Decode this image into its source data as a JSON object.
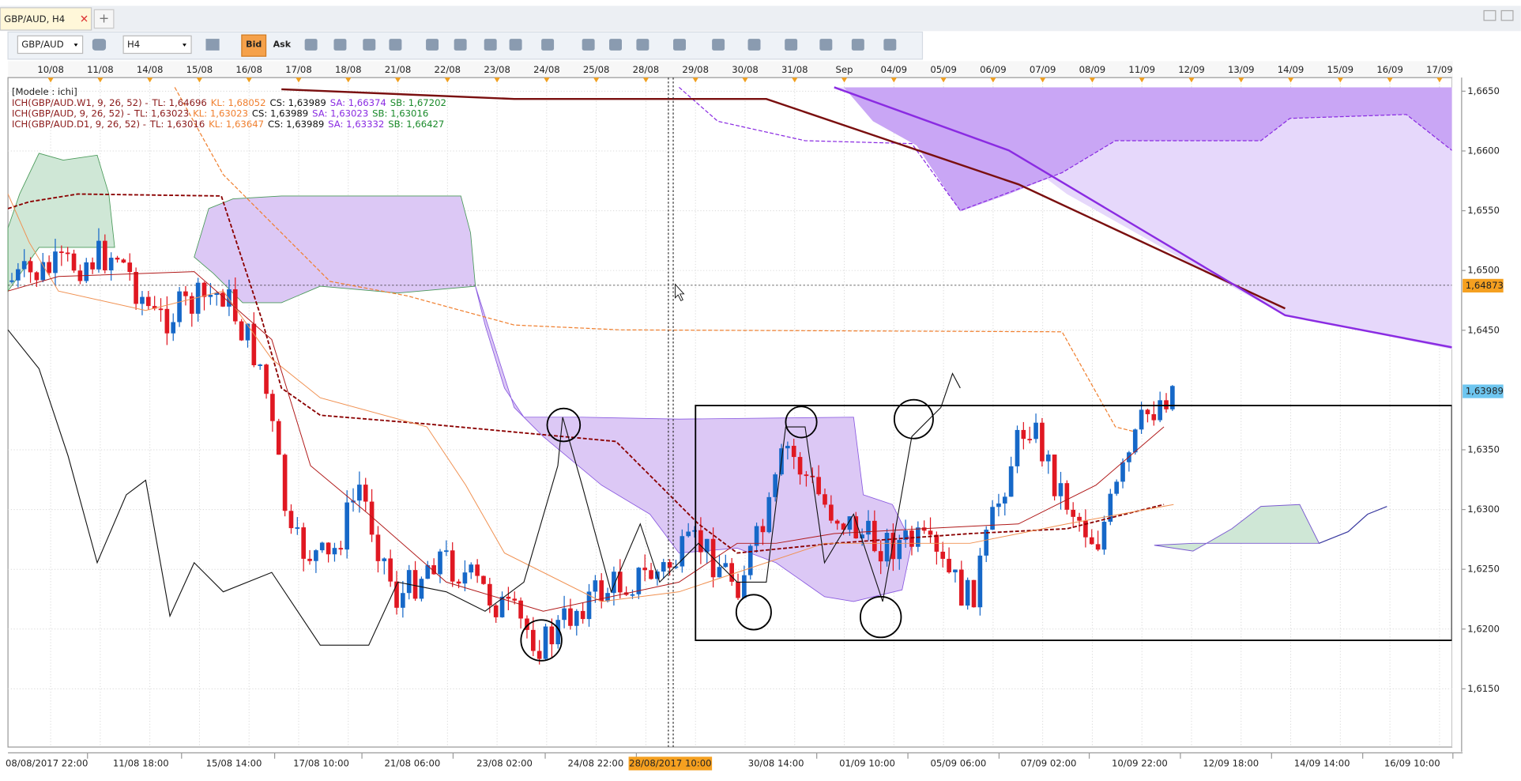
{
  "tab": {
    "title": "GBP/AUD, H4",
    "new": "+"
  },
  "toolbar": {
    "symbol": "GBP/AUD",
    "timeframe": "H4",
    "bid": "Bid",
    "ask": "Ask"
  },
  "chart": {
    "template": "[Modele : ichi]",
    "indicators": [
      {
        "name": "ICH(GBP/AUD.W1, 9, 26, 52) -",
        "tl": "TL: 1,64696",
        "kl": "KL: 1,68052",
        "cs": "CS: 1,63989",
        "sa": "SA: 1,66374",
        "sb": "SB: 1,67202"
      },
      {
        "name": "ICH(GBP/AUD, 9, 26, 52) -",
        "tl": "TL: 1,63023",
        "kl": "KL: 1,63023",
        "cs": "CS: 1,63989",
        "sa": "SA: 1,63023",
        "sb": "SB: 1,63016"
      },
      {
        "name": "ICH(GBP/AUD.D1, 9, 26, 52) -",
        "tl": "TL: 1,63016",
        "kl": "KL: 1,63647",
        "cs": "CS: 1,63989",
        "sa": "SA: 1,63332",
        "sb": "SB: 1,66427"
      }
    ],
    "top_dates": [
      "10/08",
      "11/08",
      "14/08",
      "15/08",
      "16/08",
      "17/08",
      "18/08",
      "21/08",
      "22/08",
      "23/08",
      "24/08",
      "25/08",
      "28/08",
      "29/08",
      "30/08",
      "31/08",
      "Sep",
      "04/09",
      "05/09",
      "06/09",
      "07/09",
      "08/09",
      "11/09",
      "12/09",
      "13/09",
      "14/09",
      "15/09",
      "16/09",
      "17/09"
    ],
    "bottom_dates": [
      "08/08/2017 22:00",
      "11/08 18:00",
      "15/08 14:00",
      "17/08 10:00",
      "21/08 06:00",
      "23/08 02:00",
      "24/08 22:00",
      "30/08 14:00",
      "01/09 10:00",
      "05/09 06:00",
      "07/09 02:00",
      "10/09 22:00",
      "12/09 18:00",
      "14/09 14:00",
      "16/09 10:00"
    ],
    "cursor_date": "28/08/2017 10:00",
    "price_labels": [
      "1,6650",
      "1,6600",
      "1,6550",
      "1,6500",
      "1,6450",
      "1,6350",
      "1,6300",
      "1,6250",
      "1,6200",
      "1,6150"
    ],
    "price_tags": [
      "1,64873",
      "1,63989"
    ]
  }
}
